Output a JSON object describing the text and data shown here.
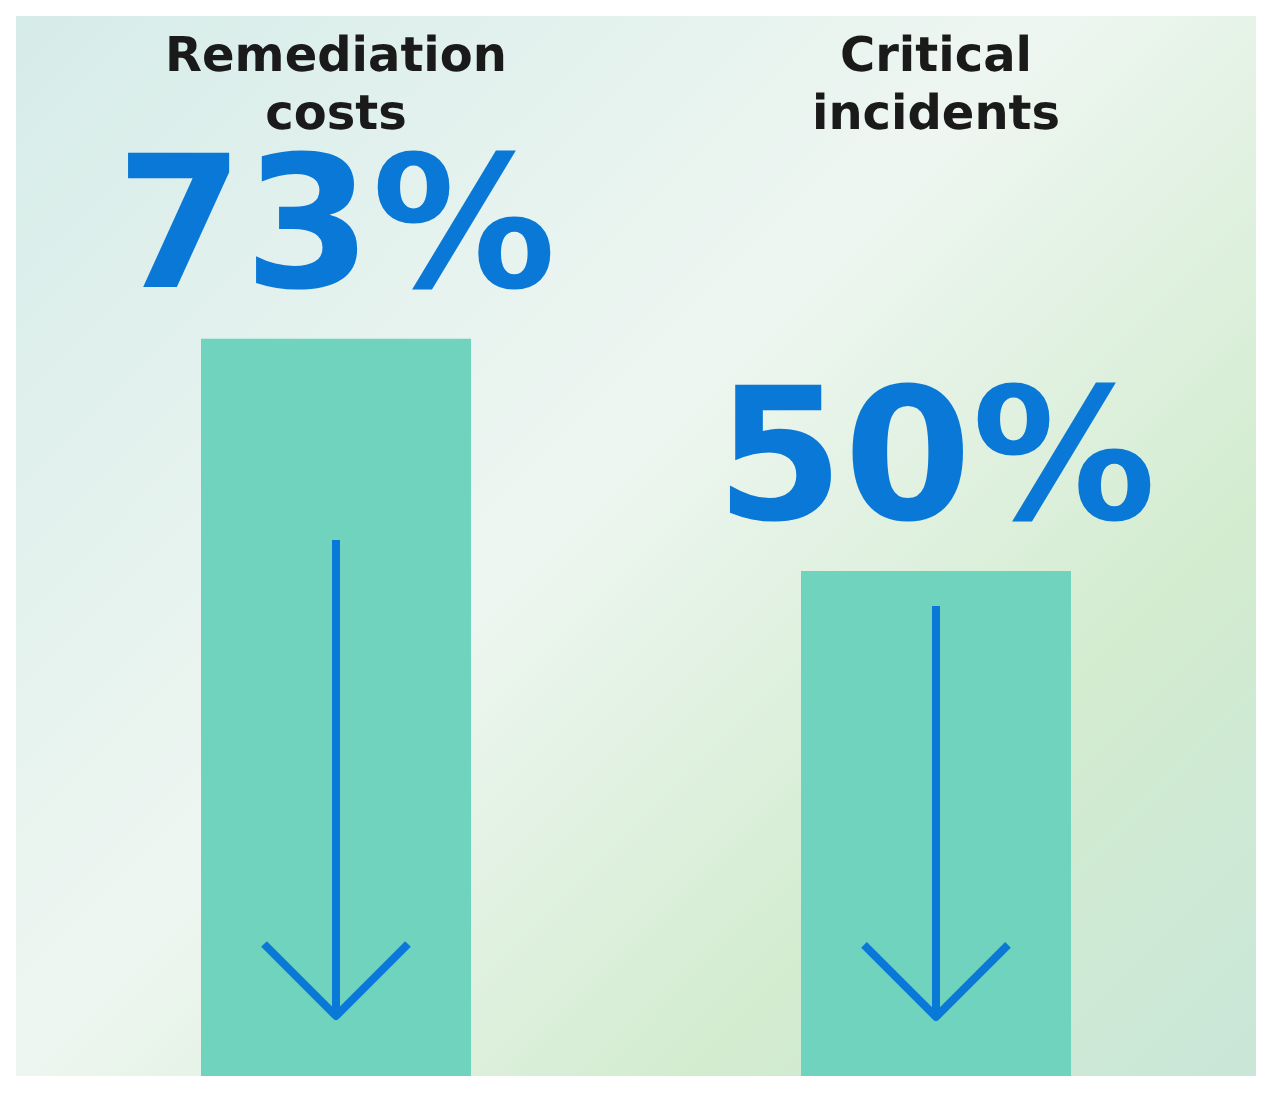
{
  "chart_data": {
    "type": "bar",
    "categories": [
      "Remediation costs",
      "Critical incidents"
    ],
    "values": [
      73,
      50
    ],
    "color": "#6fd3be",
    "value_labels": [
      "73%",
      "50%"
    ]
  }
}
